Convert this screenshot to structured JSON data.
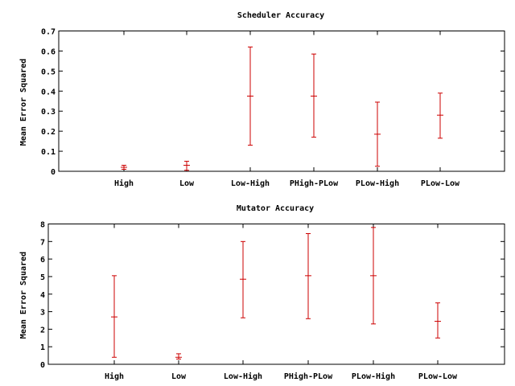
{
  "colors": {
    "error_bar": "#cc0000",
    "axis": "#000000",
    "background": "#ffffff"
  },
  "chart_data": [
    {
      "type": "errorbar",
      "title": "Scheduler Accuracy",
      "xlabel": "",
      "ylabel": "Mean Error Squared",
      "ylim": [
        0,
        0.7
      ],
      "yticks": [
        0,
        0.1,
        0.2,
        0.3,
        0.4,
        0.5,
        0.6,
        0.7
      ],
      "ytick_labels": [
        "0",
        "0.1",
        "0.2",
        "0.3",
        "0.4",
        "0.5",
        "0.6",
        "0.7"
      ],
      "categories": [
        "High",
        "Low",
        "Low-High",
        "PHigh-PLow",
        "PLow-High",
        "PLow-Low"
      ],
      "mean": [
        0.02,
        0.03,
        0.375,
        0.375,
        0.185,
        0.28
      ],
      "low": [
        0.01,
        0.005,
        0.13,
        0.17,
        0.025,
        0.165
      ],
      "high": [
        0.03,
        0.05,
        0.62,
        0.585,
        0.345,
        0.39
      ],
      "grid": false,
      "legend": "none"
    },
    {
      "type": "errorbar",
      "title": "Mutator Accuracy",
      "xlabel": "",
      "ylabel": "Mean Error Squared",
      "ylim": [
        0,
        8
      ],
      "yticks": [
        0,
        1,
        2,
        3,
        4,
        5,
        6,
        7,
        8
      ],
      "ytick_labels": [
        "0",
        "1",
        "2",
        "3",
        "4",
        "5",
        "6",
        "7",
        "8"
      ],
      "categories": [
        "High",
        "Low",
        "Low-High",
        "PHigh-PLow",
        "PLow-High",
        "PLow-Low"
      ],
      "mean": [
        2.7,
        0.4,
        4.85,
        5.05,
        5.05,
        2.45
      ],
      "low": [
        0.4,
        0.3,
        2.65,
        2.6,
        2.3,
        1.5
      ],
      "high": [
        5.05,
        0.6,
        7.0,
        7.45,
        7.8,
        3.5
      ],
      "grid": false,
      "legend": "none"
    }
  ]
}
